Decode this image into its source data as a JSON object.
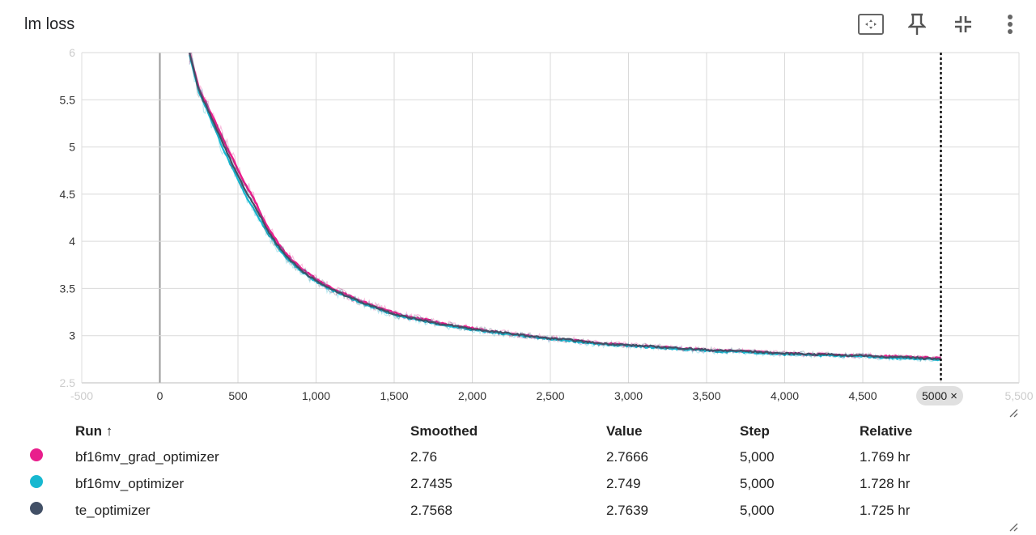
{
  "card": {
    "title": "lm loss",
    "icons": [
      "fit-domain-icon",
      "pin-icon",
      "collapse-icon",
      "more-vert-icon"
    ],
    "step_marker_label": "5000",
    "step_marker_close": "×"
  },
  "chart_data": {
    "type": "line",
    "title": "lm loss",
    "xlabel": "",
    "ylabel": "",
    "xlim": [
      -500,
      5500
    ],
    "ylim": [
      2.5,
      6.0
    ],
    "x_ticks": [
      "-500",
      "0",
      "500",
      "1,000",
      "1,500",
      "2,000",
      "2,500",
      "3,000",
      "3,500",
      "4,000",
      "4,500",
      "5000",
      "5,500"
    ],
    "y_ticks": [
      "2.5",
      "3",
      "3.5",
      "4",
      "4.5",
      "5",
      "5.5",
      "6"
    ],
    "grid": true,
    "marker_step": 5000,
    "series": [
      {
        "name": "bf16mv_grad_optimizer",
        "color": "#e91e8c",
        "x": [
          190,
          250,
          300,
          350,
          400,
          450,
          500,
          550,
          600,
          650,
          700,
          750,
          800,
          900,
          1000,
          1100,
          1200,
          1300,
          1400,
          1500,
          1600,
          1700,
          1800,
          1900,
          2000,
          2100,
          2200,
          2300,
          2400,
          2500,
          2600,
          2700,
          2800,
          2900,
          3000,
          3100,
          3200,
          3300,
          3400,
          3500,
          3600,
          3700,
          3800,
          3900,
          4000,
          4100,
          4200,
          4300,
          4400,
          4500,
          4600,
          4700,
          4800,
          4900,
          5000
        ],
        "y": [
          6.0,
          5.62,
          5.45,
          5.28,
          5.1,
          4.93,
          4.76,
          4.6,
          4.46,
          4.28,
          4.12,
          4.0,
          3.88,
          3.72,
          3.6,
          3.5,
          3.43,
          3.36,
          3.3,
          3.24,
          3.2,
          3.17,
          3.13,
          3.1,
          3.08,
          3.05,
          3.03,
          3.01,
          2.99,
          2.97,
          2.96,
          2.94,
          2.92,
          2.91,
          2.9,
          2.89,
          2.88,
          2.87,
          2.86,
          2.85,
          2.84,
          2.84,
          2.83,
          2.82,
          2.81,
          2.81,
          2.8,
          2.8,
          2.79,
          2.79,
          2.78,
          2.78,
          2.77,
          2.77,
          2.76
        ]
      },
      {
        "name": "bf16mv_optimizer",
        "color": "#17b8d0",
        "x": [
          190,
          250,
          300,
          350,
          400,
          450,
          500,
          550,
          600,
          650,
          700,
          750,
          800,
          900,
          1000,
          1100,
          1200,
          1300,
          1400,
          1500,
          1600,
          1700,
          1800,
          1900,
          2000,
          2100,
          2200,
          2300,
          2400,
          2500,
          2600,
          2700,
          2800,
          2900,
          3000,
          3100,
          3200,
          3300,
          3400,
          3500,
          3600,
          3700,
          3800,
          3900,
          4000,
          4100,
          4200,
          4300,
          4400,
          4500,
          4600,
          4700,
          4800,
          4900,
          5000
        ],
        "y": [
          5.98,
          5.58,
          5.4,
          5.2,
          5.0,
          4.82,
          4.65,
          4.48,
          4.35,
          4.2,
          4.06,
          3.95,
          3.84,
          3.69,
          3.57,
          3.48,
          3.41,
          3.34,
          3.28,
          3.22,
          3.18,
          3.15,
          3.11,
          3.09,
          3.06,
          3.04,
          3.02,
          3.0,
          2.98,
          2.96,
          2.95,
          2.93,
          2.91,
          2.9,
          2.89,
          2.88,
          2.87,
          2.86,
          2.85,
          2.84,
          2.83,
          2.83,
          2.82,
          2.81,
          2.8,
          2.8,
          2.79,
          2.79,
          2.78,
          2.78,
          2.77,
          2.76,
          2.76,
          2.75,
          2.7435
        ]
      },
      {
        "name": "te_optimizer",
        "color": "#425066",
        "x": [
          190,
          250,
          300,
          350,
          400,
          450,
          500,
          550,
          600,
          650,
          700,
          750,
          800,
          900,
          1000,
          1100,
          1200,
          1300,
          1400,
          1500,
          1600,
          1700,
          1800,
          1900,
          2000,
          2100,
          2200,
          2300,
          2400,
          2500,
          2600,
          2700,
          2800,
          2900,
          3000,
          3100,
          3200,
          3300,
          3400,
          3500,
          3600,
          3700,
          3800,
          3900,
          4000,
          4100,
          4200,
          4300,
          4400,
          4500,
          4600,
          4700,
          4800,
          4900,
          5000
        ],
        "y": [
          5.99,
          5.6,
          5.42,
          5.24,
          5.05,
          4.87,
          4.7,
          4.53,
          4.4,
          4.24,
          4.09,
          3.97,
          3.86,
          3.7,
          3.58,
          3.49,
          3.42,
          3.35,
          3.29,
          3.23,
          3.19,
          3.16,
          3.12,
          3.1,
          3.07,
          3.05,
          3.03,
          3.01,
          2.99,
          2.97,
          2.96,
          2.94,
          2.92,
          2.91,
          2.9,
          2.89,
          2.88,
          2.87,
          2.86,
          2.85,
          2.84,
          2.84,
          2.83,
          2.82,
          2.81,
          2.81,
          2.8,
          2.8,
          2.79,
          2.79,
          2.78,
          2.77,
          2.77,
          2.76,
          2.7568
        ]
      }
    ]
  },
  "table": {
    "headers": {
      "run": "Run ↑",
      "smoothed": "Smoothed",
      "value": "Value",
      "step": "Step",
      "relative": "Relative"
    },
    "rows": [
      {
        "color": "#e91e8c",
        "run": "bf16mv_grad_optimizer",
        "smoothed": "2.76",
        "value": "2.7666",
        "step": "5,000",
        "relative": "1.769 hr"
      },
      {
        "color": "#17b8d0",
        "run": "bf16mv_optimizer",
        "smoothed": "2.7435",
        "value": "2.749",
        "step": "5,000",
        "relative": "1.728 hr"
      },
      {
        "color": "#425066",
        "run": "te_optimizer",
        "smoothed": "2.7568",
        "value": "2.7639",
        "step": "5,000",
        "relative": "1.725 hr"
      }
    ]
  }
}
